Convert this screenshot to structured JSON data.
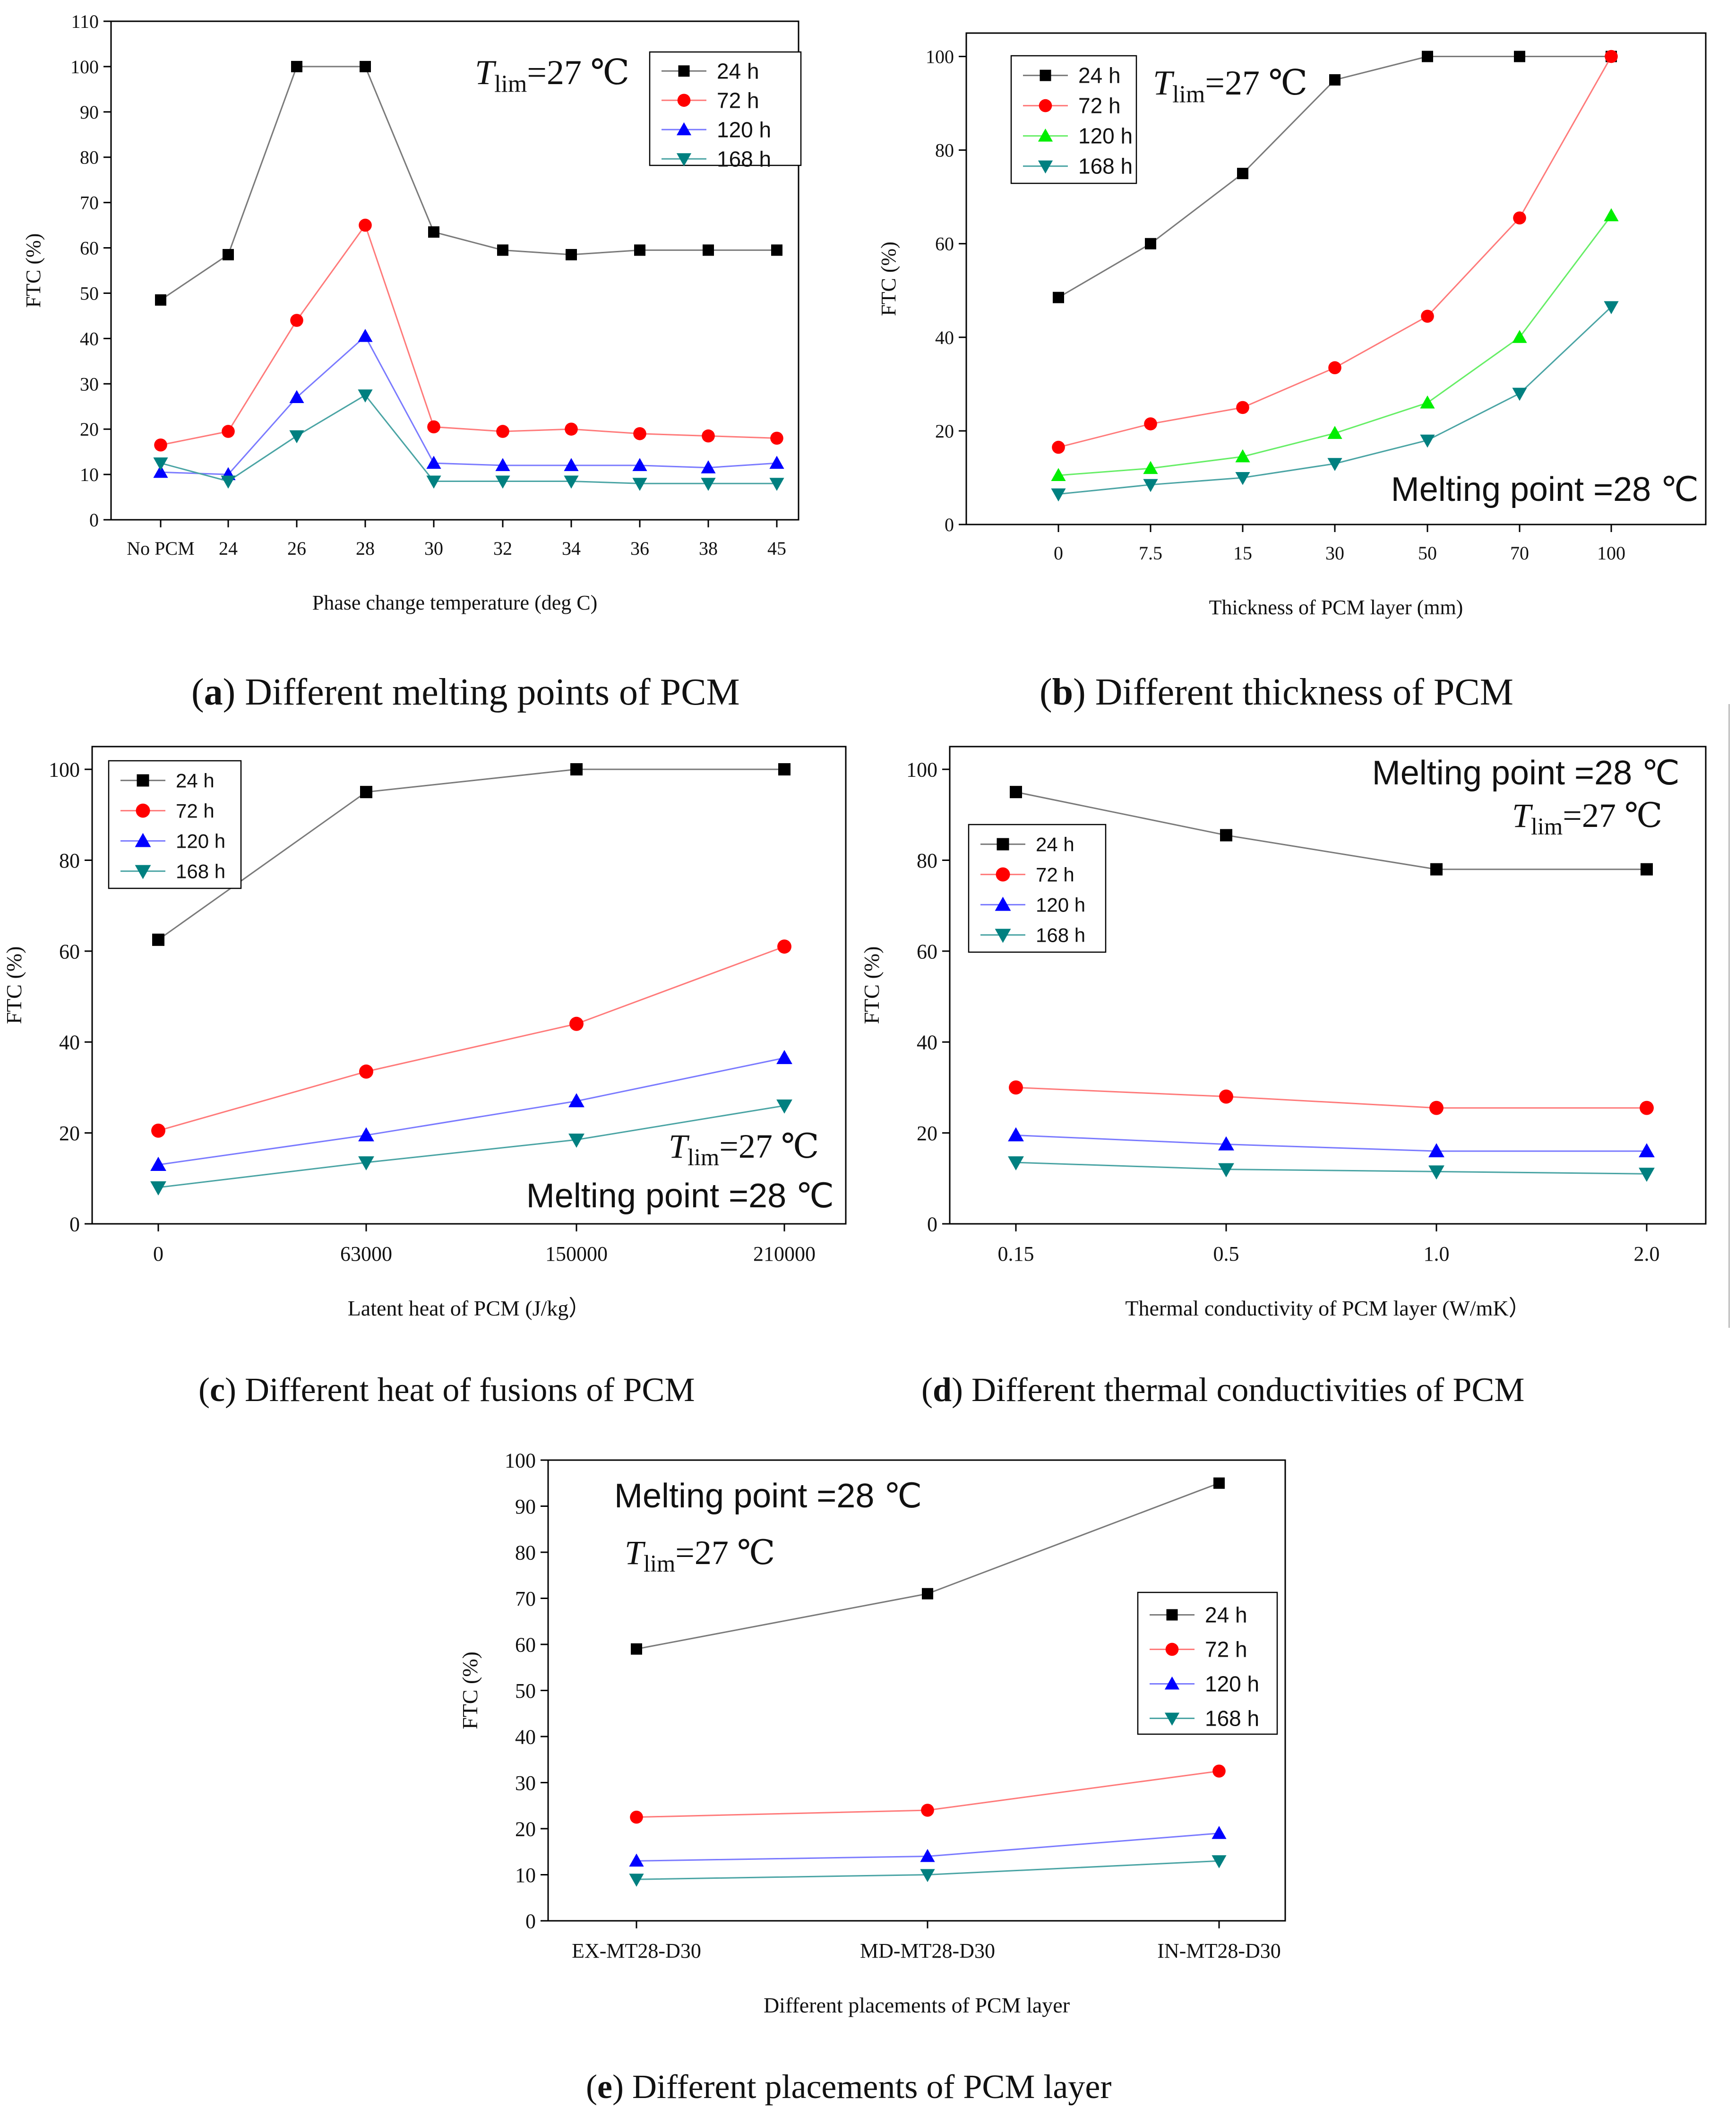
{
  "figure_captions": {
    "a": {
      "letter": "a",
      "text": "Different melting points of PCM"
    },
    "b": {
      "letter": "b",
      "text": "Different thickness of PCM"
    },
    "c": {
      "letter": "c",
      "text": "Different heat of fusions of PCM"
    },
    "d": {
      "letter": "d",
      "text": "Different thermal conductivities of PCM"
    },
    "e": {
      "letter": "e",
      "text": "Different placements of PCM layer"
    }
  },
  "annotations": {
    "tlim_var": "T",
    "tlim_sub": "lim",
    "tlim_value": "=27 ℃",
    "melting_point": "Melting point =28 ℃"
  },
  "colors": {
    "24 h": "#000000",
    "72 h": "#ff0000",
    "120 h": "#0000ff",
    "168 h": "#008080",
    "120 h (b)": "#00ee00"
  },
  "chart_data": [
    {
      "id": "a",
      "type": "line",
      "categories": [
        "No PCM",
        "24",
        "26",
        "28",
        "30",
        "32",
        "34",
        "36",
        "38",
        "45"
      ],
      "series": [
        {
          "name": "24 h",
          "values": [
            48.5,
            58.5,
            100,
            100,
            63.5,
            59.5,
            58.5,
            59.5,
            59.5,
            59.5
          ]
        },
        {
          "name": "72 h",
          "values": [
            16.5,
            19.5,
            44,
            65,
            20.5,
            19.5,
            20,
            19,
            18.5,
            18
          ]
        },
        {
          "name": "120 h",
          "values": [
            10.5,
            10,
            27,
            40.5,
            12.5,
            12,
            12,
            12,
            11.5,
            12.5
          ]
        },
        {
          "name": "168 h",
          "values": [
            12.5,
            8.5,
            18.5,
            27.5,
            8.5,
            8.5,
            8.5,
            8,
            8,
            8
          ]
        }
      ],
      "xlabel": "Phase change temperature (deg C)",
      "ylabel": "FTC (%)",
      "ylim": [
        0,
        110
      ],
      "yticks": [
        0,
        10,
        20,
        30,
        40,
        50,
        60,
        70,
        80,
        90,
        100,
        110
      ],
      "legend": "top-right"
    },
    {
      "id": "b",
      "type": "line",
      "categories": [
        "0",
        "7.5",
        "15",
        "30",
        "50",
        "70",
        "100"
      ],
      "series": [
        {
          "name": "24 h",
          "values": [
            48.5,
            60,
            75,
            95,
            100,
            100,
            100
          ]
        },
        {
          "name": "72 h",
          "values": [
            16.5,
            21.5,
            25,
            33.5,
            44.5,
            65.5,
            100
          ]
        },
        {
          "name": "120 h",
          "values": [
            10.5,
            12,
            14.5,
            19.5,
            26,
            40,
            66
          ]
        },
        {
          "name": "168 h",
          "values": [
            6.5,
            8.5,
            10,
            13,
            18,
            28,
            46.5
          ]
        }
      ],
      "xlabel": "Thickness of PCM layer (mm)",
      "ylabel": "FTC (%)",
      "ylim": [
        0,
        105
      ],
      "yticks": [
        0,
        20,
        40,
        60,
        80,
        100
      ],
      "legend": "top-left"
    },
    {
      "id": "c",
      "type": "line",
      "categories": [
        "0",
        "63000",
        "150000",
        "210000"
      ],
      "series": [
        {
          "name": "24 h",
          "values": [
            62.5,
            95,
            100,
            100
          ]
        },
        {
          "name": "72 h",
          "values": [
            20.5,
            33.5,
            44,
            61
          ]
        },
        {
          "name": "120 h",
          "values": [
            13,
            19.5,
            27,
            36.5
          ]
        },
        {
          "name": "168 h",
          "values": [
            8,
            13.5,
            18.5,
            26
          ]
        }
      ],
      "xlabel": "Latent heat of PCM (J/kg）",
      "ylabel": "FTC (%)",
      "ylim": [
        0,
        105
      ],
      "yticks": [
        0,
        20,
        40,
        60,
        80,
        100
      ],
      "legend": "top-left"
    },
    {
      "id": "d",
      "type": "line",
      "categories": [
        "0.15",
        "0.5",
        "1.0",
        "2.0"
      ],
      "series": [
        {
          "name": "24 h",
          "values": [
            95,
            85.5,
            78,
            78
          ]
        },
        {
          "name": "72 h",
          "values": [
            30,
            28,
            25.5,
            25.5
          ]
        },
        {
          "name": "120 h",
          "values": [
            19.5,
            17.5,
            16,
            16
          ]
        },
        {
          "name": "168 h",
          "values": [
            13.5,
            12,
            11.5,
            11
          ]
        }
      ],
      "xlabel": "Thermal conductivity of PCM layer (W/mK）",
      "ylabel": "FTC (%)",
      "ylim": [
        0,
        105
      ],
      "yticks": [
        0,
        20,
        40,
        60,
        80,
        100
      ],
      "legend": "top-left"
    },
    {
      "id": "e",
      "type": "line",
      "categories": [
        "EX-MT28-D30",
        "MD-MT28-D30",
        "IN-MT28-D30"
      ],
      "series": [
        {
          "name": "24 h",
          "values": [
            59,
            71,
            95
          ]
        },
        {
          "name": "72 h",
          "values": [
            22.5,
            24,
            32.5
          ]
        },
        {
          "name": "120 h",
          "values": [
            13,
            14,
            19
          ]
        },
        {
          "name": "168 h",
          "values": [
            9,
            10,
            13
          ]
        }
      ],
      "xlabel": "Different placements of PCM layer",
      "ylabel": "FTC (%)",
      "ylim": [
        0,
        100
      ],
      "yticks": [
        0,
        10,
        20,
        30,
        40,
        50,
        60,
        70,
        80,
        90,
        100
      ],
      "legend": "right"
    }
  ]
}
